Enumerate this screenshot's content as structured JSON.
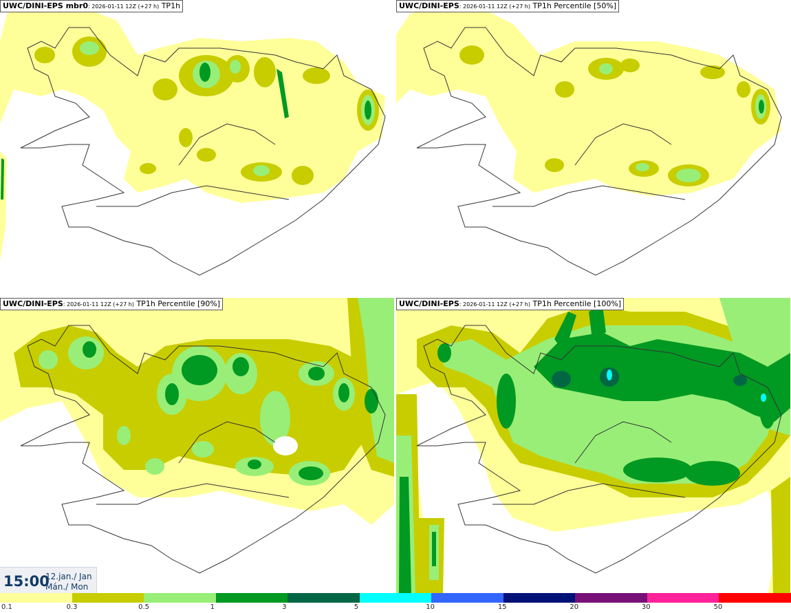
{
  "panels": [
    {
      "model": "UWC/DINI-EPS mbr0",
      "run": ": 2026-01-11 12Z (+27 h)",
      "field": " TP1h"
    },
    {
      "model": "UWC/DINI-EPS",
      "run": ": 2026-01-11 12Z (+27 h)",
      "field": " TP1h Percentile [50%]"
    },
    {
      "model": "UWC/DINI-EPS",
      "run": ": 2026-01-11 12Z (+27 h)",
      "field": " TP1h Percentile [90%]"
    },
    {
      "model": "UWC/DINI-EPS",
      "run": ": 2026-01-11 12Z (+27 h)",
      "field": " TP1h Percentile [100%]"
    }
  ],
  "valid": {
    "time": "15:00",
    "date_line1": "12.jan./ Jan",
    "date_line2": "Mán./ Mon"
  },
  "legend": {
    "labels": [
      "0.1",
      "0.3",
      "0.5",
      "1",
      "3",
      "5",
      "10",
      "15",
      "20",
      "30",
      "50"
    ],
    "colors": [
      "#ffff99",
      "#c8cd00",
      "#99ee77",
      "#009922",
      "#006644",
      "#00ffff",
      "#3366ff",
      "#001177",
      "#771177",
      "#ff2299",
      "#ff0000"
    ]
  },
  "colors": {
    "light": "#ffff99",
    "olive": "#c8cd00",
    "lgreen": "#99ee77",
    "green": "#009922",
    "dgreen": "#006644",
    "cyan": "#00ffff",
    "coast": "#333333"
  }
}
